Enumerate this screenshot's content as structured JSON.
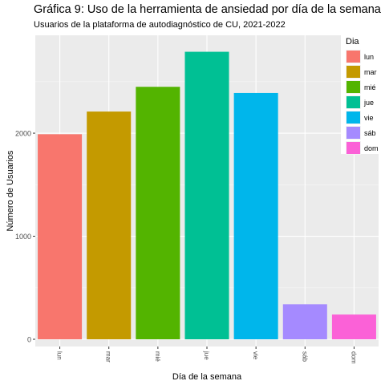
{
  "chart_data": {
    "type": "bar",
    "title": "Gráfica 9: Uso de la herramienta de ansiedad por día de la semana",
    "subtitle": "Usuarios de la plataforma de autodiagnóstico de CU, 2021-2022",
    "xlabel": "Día de la semana",
    "ylabel": "Número de Usuarios",
    "categories": [
      "lun",
      "mar",
      "mié",
      "jue",
      "vie",
      "sáb",
      "dom"
    ],
    "values": [
      1990,
      2210,
      2450,
      2790,
      2390,
      340,
      240
    ],
    "colors": [
      "#F8766D",
      "#C49A00",
      "#53B400",
      "#00C094",
      "#00B6EB",
      "#A58AFF",
      "#FB61D7"
    ],
    "yticks": [
      0,
      1000,
      2000
    ],
    "ylim": [
      -70,
      2950
    ],
    "grid": true,
    "background": "#EBEBEB",
    "legend": {
      "title": "Dia",
      "position": "right",
      "entries": [
        "lun",
        "mar",
        "mié",
        "jue",
        "vie",
        "sáb",
        "dom"
      ]
    }
  }
}
